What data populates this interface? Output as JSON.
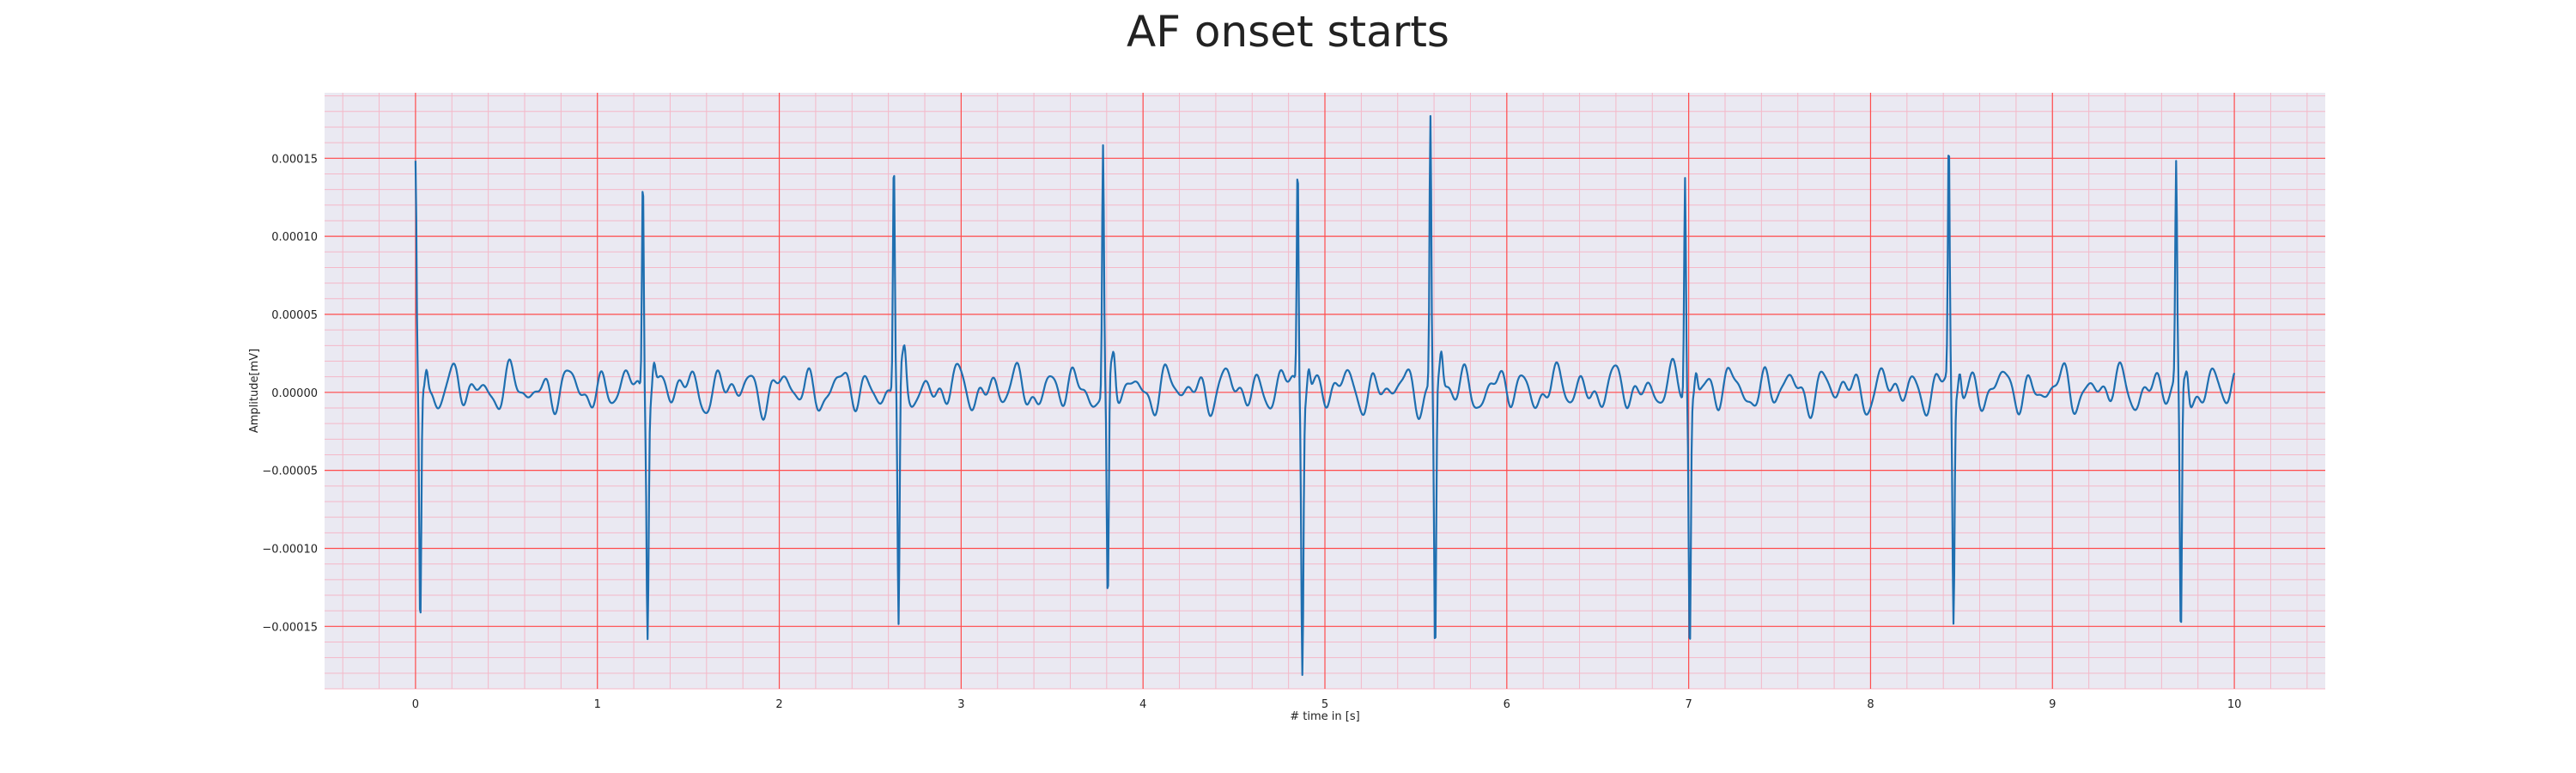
{
  "chart_data": {
    "type": "line",
    "title": "AF onset starts",
    "xlabel": "# time in [s]",
    "ylabel": "Amplitude[mV]",
    "xlim": [
      -0.5,
      10.5
    ],
    "ylim": [
      -0.00019,
      0.000192
    ],
    "xticks": [
      0,
      1,
      2,
      3,
      4,
      5,
      6,
      7,
      8,
      9,
      10
    ],
    "xtick_labels": [
      "0",
      "1",
      "2",
      "3",
      "4",
      "5",
      "6",
      "7",
      "8",
      "9",
      "10"
    ],
    "yticks": [
      0.00015,
      0.0001,
      5e-05,
      0.0,
      -5e-05,
      -0.0001,
      -0.00015
    ],
    "ytick_labels": [
      "0.00015",
      "0.00010",
      "0.00005",
      "0.00000",
      "−0.00005",
      "−0.00010",
      "−0.00015"
    ],
    "grid": true,
    "major_grid_color": "#ff4d4d",
    "minor_grid_color": "#f4b8c8",
    "plot_background": "#eae9f2",
    "line_color": "#1f6fb0",
    "series": [
      {
        "beats": [
          {
            "t": 0.0,
            "peak": 0.000136,
            "trough": -0.000158
          },
          {
            "t": 1.25,
            "peak": 0.000143,
            "trough": -0.000143
          },
          {
            "t": 2.63,
            "peak": 0.000147,
            "trough": -0.000165
          },
          {
            "t": 3.78,
            "peak": 0.000157,
            "trough": -0.00015
          },
          {
            "t": 4.85,
            "peak": 0.000146,
            "trough": -0.00017
          },
          {
            "t": 5.58,
            "peak": 0.000173,
            "trough": -0.000174
          },
          {
            "t": 6.98,
            "peak": 0.00014,
            "trough": -0.000164
          },
          {
            "t": 8.43,
            "peak": 0.000152,
            "trough": -0.00015
          },
          {
            "t": 9.68,
            "peak": 0.000137,
            "trough": -0.000171
          }
        ],
        "baseline_range": [
          -1.5e-05,
          1.9e-05
        ],
        "x_end": 10.0
      }
    ]
  }
}
